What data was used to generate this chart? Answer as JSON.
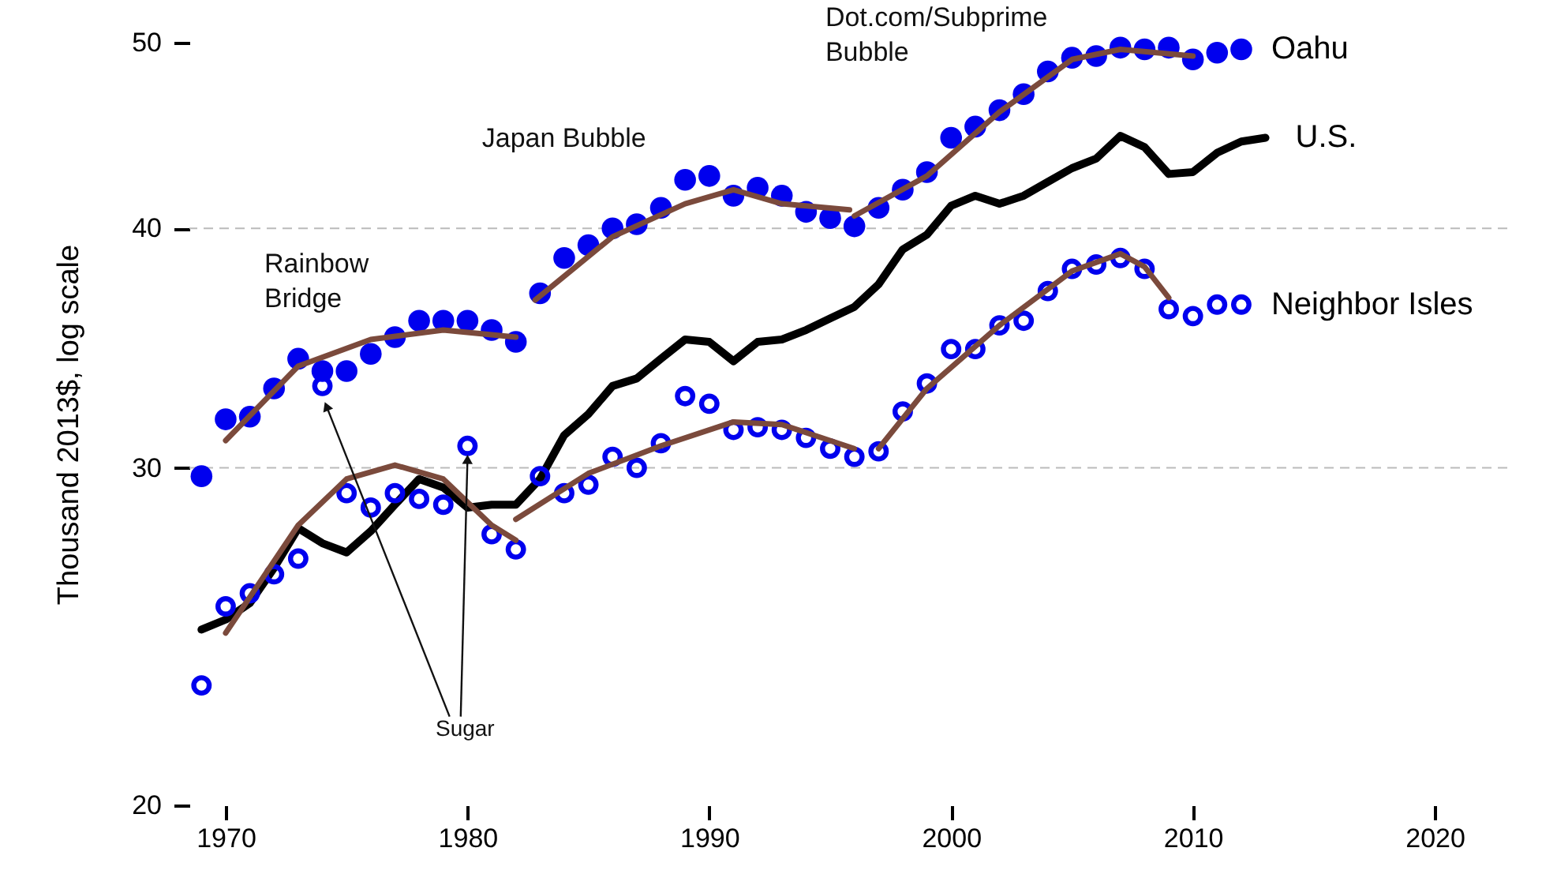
{
  "chart_data": {
    "type": "scatter",
    "ylabel": "Thousand 2013$, log scale",
    "xlim": [
      1968.5,
      2023
    ],
    "xticks": [
      1970,
      1980,
      1990,
      2000,
      2010,
      2020
    ],
    "ylim": [
      20,
      50
    ],
    "yticks": [
      20,
      30,
      40,
      50
    ],
    "log": "y",
    "ref_lines": [
      {
        "axis": "y",
        "value": 30,
        "color": "#bbbbbb",
        "line_style": "dashed"
      },
      {
        "axis": "y",
        "value": 40,
        "color": "#bbbbbb",
        "line_style": "dashed"
      }
    ],
    "annotations": [
      "Rainbow Bridge",
      "Japan Bubble",
      "Dot.com/Subprime Bubble",
      {
        "text": "Sugar",
        "x": 1980,
        "y": 30.8
      }
    ],
    "series": [
      {
        "name": "Oahu",
        "type": "scatter",
        "marker": "circle",
        "color": "#0000ee",
        "x": [
          1969,
          1970,
          1971,
          1972,
          1973,
          1974,
          1975,
          1976,
          1977,
          1978,
          1979,
          1980,
          1981,
          1982,
          1983,
          1984,
          1985,
          1986,
          1987,
          1988,
          1989,
          1990,
          1991,
          1992,
          1993,
          1994,
          1995,
          1996,
          1997,
          1998,
          1999,
          2000,
          2001,
          2002,
          2003,
          2004,
          2005,
          2006,
          2007,
          2008,
          2009,
          2010,
          2011,
          2012
        ],
        "values": [
          29.7,
          31.8,
          31.9,
          33.0,
          34.2,
          33.7,
          33.7,
          34.4,
          35.1,
          35.8,
          35.8,
          35.8,
          35.4,
          34.9,
          37.0,
          38.6,
          39.2,
          40.0,
          40.2,
          41.0,
          42.4,
          42.6,
          41.6,
          42.0,
          41.6,
          40.8,
          40.5,
          40.1,
          41.0,
          41.9,
          42.8,
          44.6,
          45.2,
          46.1,
          47.0,
          48.3,
          49.1,
          49.2,
          49.7,
          49.6,
          49.7,
          49.0,
          49.4,
          49.6
        ]
      },
      {
        "name": "U.S.",
        "type": "line",
        "color": "#000000",
        "x": [
          1969,
          1970,
          1971,
          1972,
          1973,
          1974,
          1975,
          1976,
          1977,
          1978,
          1979,
          1980,
          1981,
          1982,
          1983,
          1984,
          1985,
          1986,
          1987,
          1988,
          1989,
          1990,
          1991,
          1992,
          1993,
          1994,
          1995,
          1996,
          1997,
          1998,
          1999,
          2000,
          2001,
          2002,
          2003,
          2004,
          2005,
          2006,
          2007,
          2008,
          2009,
          2010,
          2011,
          2012,
          2013
        ],
        "values": [
          24.7,
          25.0,
          25.5,
          26.6,
          27.9,
          27.4,
          27.1,
          27.8,
          28.7,
          29.6,
          29.3,
          28.6,
          28.7,
          28.7,
          29.6,
          31.2,
          32.0,
          33.1,
          33.4,
          34.2,
          35.0,
          34.9,
          34.1,
          34.9,
          35.0,
          35.4,
          35.9,
          36.4,
          37.4,
          39.0,
          39.7,
          41.1,
          41.6,
          41.2,
          41.6,
          42.3,
          43.0,
          43.5,
          44.7,
          44.1,
          42.7,
          42.8,
          43.8,
          44.4,
          44.6
        ]
      },
      {
        "name": "Neighbor Isles",
        "type": "scatter",
        "marker": "circle",
        "color": "#0000ee",
        "x": [
          1969,
          1970,
          1971,
          1972,
          1973,
          1974,
          1975,
          1976,
          1977,
          1978,
          1979,
          1980,
          1981,
          1982,
          1983,
          1984,
          1985,
          1986,
          1987,
          1988,
          1989,
          1990,
          1991,
          1992,
          1993,
          1994,
          1995,
          1996,
          1997,
          1998,
          1999,
          2000,
          2001,
          2002,
          2003,
          2004,
          2005,
          2006,
          2007,
          2008,
          2009,
          2010,
          2011,
          2012
        ],
        "values": [
          23.1,
          25.4,
          25.8,
          26.4,
          26.9,
          33.1,
          29.1,
          28.6,
          29.1,
          28.9,
          28.7,
          30.8,
          27.7,
          27.2,
          29.7,
          29.1,
          29.4,
          30.4,
          30.0,
          30.9,
          32.7,
          32.4,
          31.4,
          31.5,
          31.4,
          31.1,
          30.7,
          30.4,
          30.6,
          32.1,
          33.2,
          34.6,
          34.6,
          35.6,
          35.8,
          37.1,
          38.1,
          38.3,
          38.6,
          38.1,
          36.3,
          36.0,
          36.5,
          36.5
        ]
      },
      {
        "type": "line",
        "color": "#7b4a3c",
        "x": [
          1970,
          1973,
          1976,
          1979,
          1982
        ],
        "values": [
          31.0,
          33.9,
          35.0,
          35.4,
          35.1
        ]
      },
      {
        "type": "line",
        "color": "#7b4a3c",
        "x": [
          1982.8,
          1986,
          1989,
          1991,
          1993,
          1995.8
        ],
        "values": [
          36.7,
          39.6,
          41.2,
          41.9,
          41.2,
          40.9
        ]
      },
      {
        "type": "line",
        "color": "#7b4a3c",
        "x": [
          1996,
          1999,
          2002,
          2005,
          2007,
          2010
        ],
        "values": [
          40.6,
          42.6,
          46.0,
          49.0,
          49.6,
          49.2
        ]
      },
      {
        "type": "line",
        "color": "#7b4a3c",
        "x": [
          1970,
          1973,
          1975,
          1977,
          1979,
          1981,
          1982
        ],
        "values": [
          24.6,
          28.0,
          29.6,
          30.1,
          29.6,
          28.0,
          27.5
        ]
      },
      {
        "type": "line",
        "color": "#7b4a3c",
        "x": [
          1982,
          1985,
          1988,
          1991,
          1993,
          1996
        ],
        "values": [
          28.2,
          29.8,
          30.8,
          31.7,
          31.6,
          30.7
        ]
      },
      {
        "type": "line",
        "color": "#7b4a3c",
        "x": [
          1997,
          1999,
          2002,
          2005,
          2007,
          2008,
          2009
        ],
        "values": [
          30.7,
          33.0,
          35.6,
          38.0,
          38.8,
          38.2,
          36.8
        ]
      }
    ]
  }
}
